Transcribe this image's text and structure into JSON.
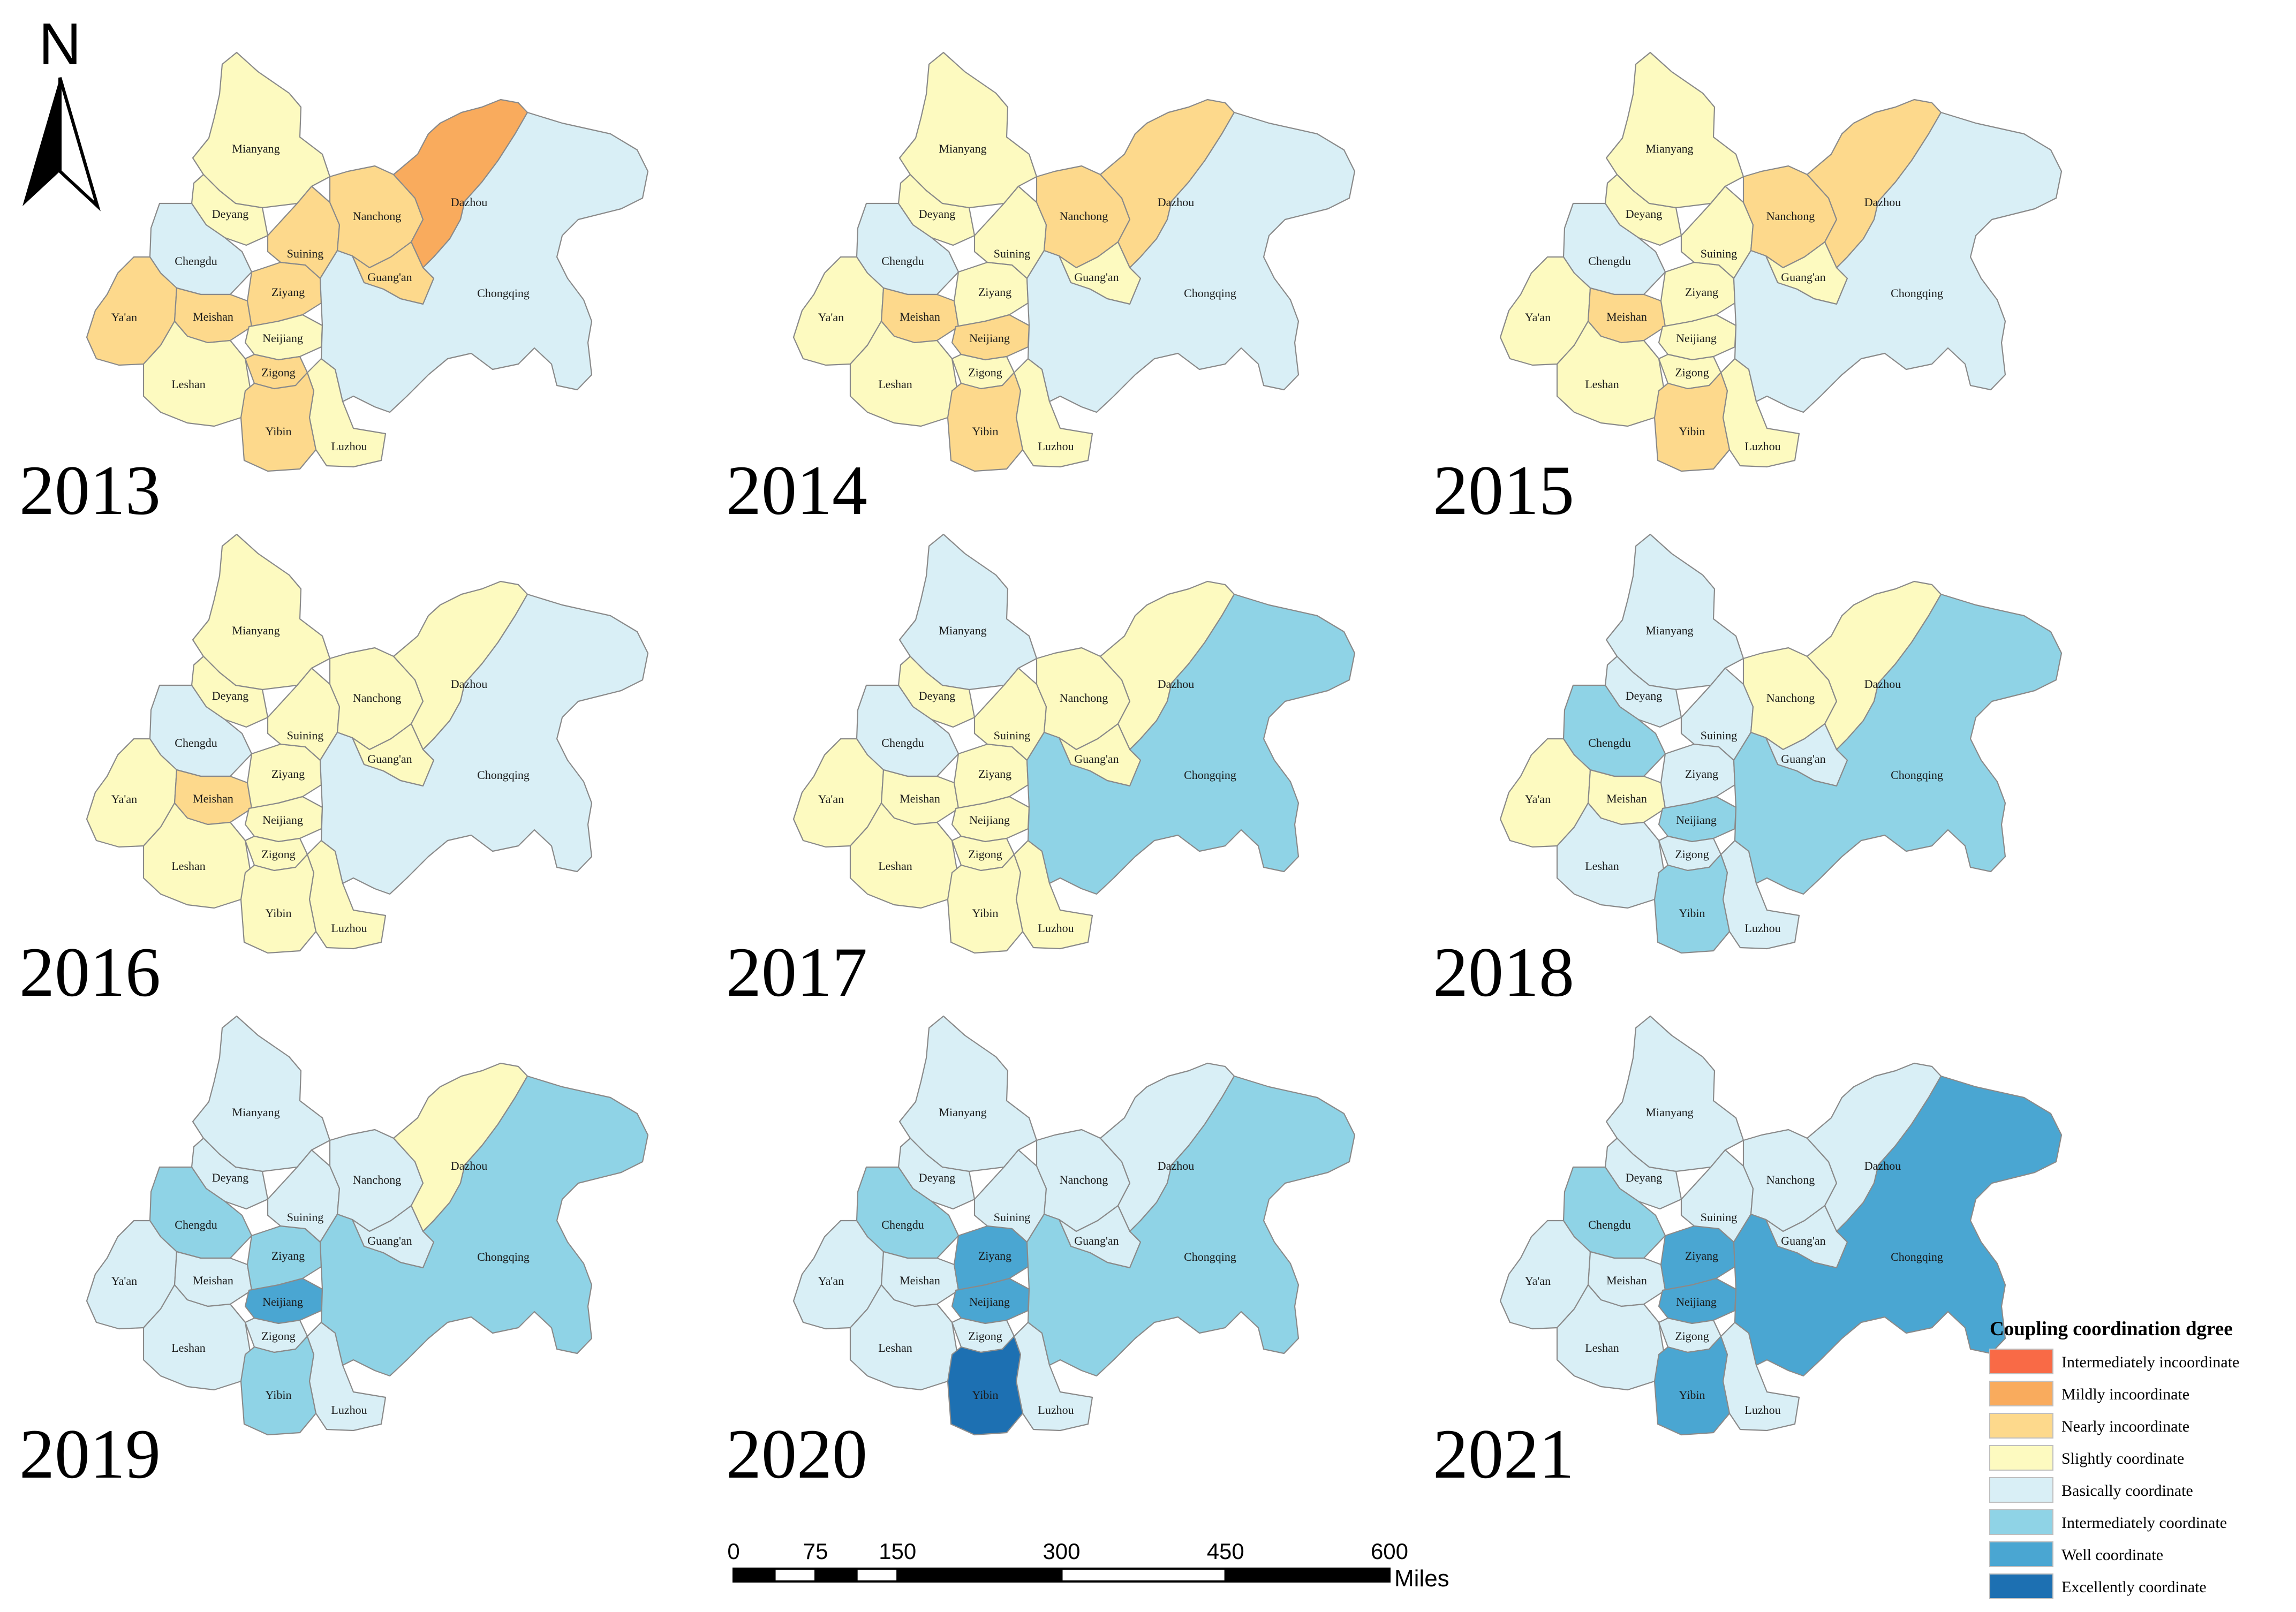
{
  "map": {
    "title": "",
    "years": [
      "2013",
      "2014",
      "2015",
      "2016",
      "2017",
      "2018",
      "2019",
      "2020",
      "2021"
    ],
    "city_names": {
      "mianyang": "Mianyang",
      "deyang": "Deyang",
      "chengdu": "Chengdu",
      "yaan": "Ya'an",
      "meishan": "Meishan",
      "leshan": "Leshan",
      "ziyang": "Ziyang",
      "suining": "Suining",
      "nanchong": "Nanchong",
      "dazhou": "Dazhou",
      "guangan": "Guang'an",
      "neijiang": "Neijiang",
      "zigong": "Zigong",
      "yibin": "Yibin",
      "luzhou": "Luzhou",
      "chongqing": "Chongqing"
    },
    "city_order": [
      "mianyang",
      "deyang",
      "chengdu",
      "yaan",
      "meishan",
      "leshan",
      "ziyang",
      "suining",
      "nanchong",
      "dazhou",
      "guangan",
      "neijiang",
      "zigong",
      "yibin",
      "luzhou",
      "chongqing"
    ],
    "coordination_levels": {
      "2013": {
        "mianyang": 3,
        "deyang": 3,
        "chengdu": 4,
        "yaan": 2,
        "meishan": 2,
        "leshan": 3,
        "ziyang": 2,
        "suining": 2,
        "nanchong": 2,
        "dazhou": 1,
        "guangan": 2,
        "neijiang": 3,
        "zigong": 2,
        "yibin": 2,
        "luzhou": 3,
        "chongqing": 4
      },
      "2014": {
        "mianyang": 3,
        "deyang": 3,
        "chengdu": 4,
        "yaan": 3,
        "meishan": 2,
        "leshan": 3,
        "ziyang": 3,
        "suining": 3,
        "nanchong": 2,
        "dazhou": 2,
        "guangan": 3,
        "neijiang": 2,
        "zigong": 3,
        "yibin": 2,
        "luzhou": 3,
        "chongqing": 4
      },
      "2015": {
        "mianyang": 3,
        "deyang": 3,
        "chengdu": 4,
        "yaan": 3,
        "meishan": 2,
        "leshan": 3,
        "ziyang": 3,
        "suining": 3,
        "nanchong": 2,
        "dazhou": 2,
        "guangan": 3,
        "neijiang": 3,
        "zigong": 3,
        "yibin": 2,
        "luzhou": 3,
        "chongqing": 4
      },
      "2016": {
        "mianyang": 3,
        "deyang": 3,
        "chengdu": 4,
        "yaan": 3,
        "meishan": 2,
        "leshan": 3,
        "ziyang": 3,
        "suining": 3,
        "nanchong": 3,
        "dazhou": 3,
        "guangan": 3,
        "neijiang": 3,
        "zigong": 3,
        "yibin": 3,
        "luzhou": 3,
        "chongqing": 4
      },
      "2017": {
        "mianyang": 4,
        "deyang": 3,
        "chengdu": 4,
        "yaan": 3,
        "meishan": 3,
        "leshan": 3,
        "ziyang": 3,
        "suining": 3,
        "nanchong": 3,
        "dazhou": 3,
        "guangan": 3,
        "neijiang": 3,
        "zigong": 3,
        "yibin": 3,
        "luzhou": 3,
        "chongqing": 5
      },
      "2018": {
        "mianyang": 4,
        "deyang": 4,
        "chengdu": 5,
        "yaan": 3,
        "meishan": 3,
        "leshan": 4,
        "ziyang": 4,
        "suining": 4,
        "nanchong": 3,
        "dazhou": 3,
        "guangan": 4,
        "neijiang": 5,
        "zigong": 4,
        "yibin": 5,
        "luzhou": 4,
        "chongqing": 5
      },
      "2019": {
        "mianyang": 4,
        "deyang": 4,
        "chengdu": 5,
        "yaan": 4,
        "meishan": 4,
        "leshan": 4,
        "ziyang": 5,
        "suining": 4,
        "nanchong": 4,
        "dazhou": 3,
        "guangan": 4,
        "neijiang": 6,
        "zigong": 4,
        "yibin": 5,
        "luzhou": 4,
        "chongqing": 5
      },
      "2020": {
        "mianyang": 4,
        "deyang": 4,
        "chengdu": 5,
        "yaan": 4,
        "meishan": 4,
        "leshan": 4,
        "ziyang": 6,
        "suining": 4,
        "nanchong": 4,
        "dazhou": 4,
        "guangan": 4,
        "neijiang": 6,
        "zigong": 4,
        "yibin": 7,
        "luzhou": 4,
        "chongqing": 5
      },
      "2021": {
        "mianyang": 4,
        "deyang": 4,
        "chengdu": 5,
        "yaan": 4,
        "meishan": 4,
        "leshan": 4,
        "ziyang": 6,
        "suining": 4,
        "nanchong": 4,
        "dazhou": 4,
        "guangan": 4,
        "neijiang": 6,
        "zigong": 4,
        "yibin": 6,
        "luzhou": 4,
        "chongqing": 6
      }
    }
  },
  "legend": {
    "title": "Coupling coordination dgree",
    "items": [
      {
        "label": "Intermediately incoordinate",
        "color": "#f96a46"
      },
      {
        "label": "Mildly incoordinate",
        "color": "#f9ab5d"
      },
      {
        "label": "Nearly incoordinate",
        "color": "#fdd98c"
      },
      {
        "label": "Slightly coordinate",
        "color": "#fdfac0"
      },
      {
        "label": "Basically coordinate",
        "color": "#d9eff6"
      },
      {
        "label": "Intermediately coordinate",
        "color": "#8fd3e6"
      },
      {
        "label": "Well coordinate",
        "color": "#4aa6d2"
      },
      {
        "label": "Excellently coordinate",
        "color": "#1d70b2"
      }
    ]
  },
  "scale_bar": {
    "ticks": [
      "0",
      "75",
      "150",
      "300",
      "450",
      "600"
    ],
    "unit": "Miles"
  },
  "north_arrow": {
    "label": "N"
  }
}
